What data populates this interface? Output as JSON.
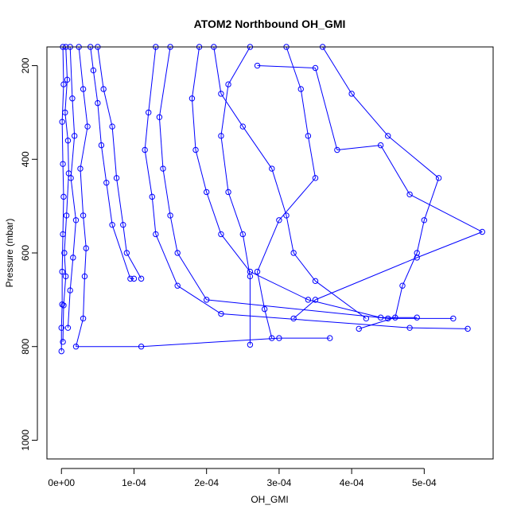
{
  "chart_data": {
    "type": "scatter",
    "title": "ATOM2 Northbound OH_GMI",
    "xlabel": "OH_GMI",
    "ylabel": "Pressure (mbar)",
    "xlim": [
      -2e-05,
      0.000595
    ],
    "ylim": [
      1040,
      160
    ],
    "y_reversed": true,
    "x_ticks": [
      0,
      0.0001,
      0.0002,
      0.0003,
      0.0004,
      0.0005
    ],
    "x_tick_labels": [
      "0e+00",
      "1e-04",
      "2e-04",
      "3e-04",
      "4e-04",
      "5e-04"
    ],
    "y_ticks": [
      200,
      400,
      600,
      800,
      1000
    ],
    "y_tick_labels": [
      "200",
      "400",
      "600",
      "800",
      "1000"
    ],
    "grid": false,
    "legend": "none",
    "colors": {
      "series": "#0000ff",
      "axes": "#000000",
      "background": "#ffffff"
    },
    "series": [
      {
        "values": [
          [
            2e-06,
            160
          ],
          [
            3e-06,
            240
          ],
          [
            1e-06,
            320
          ],
          [
            2e-06,
            410
          ],
          [
            3e-06,
            480
          ],
          [
            2e-06,
            560
          ],
          [
            1e-06,
            640
          ],
          [
            1e-06,
            710
          ],
          [
            0.0,
            760
          ],
          [
            0.0,
            810
          ]
        ]
      },
      {
        "values": [
          [
            6e-06,
            160
          ],
          [
            8e-06,
            230
          ],
          [
            5e-06,
            300
          ],
          [
            9e-06,
            360
          ],
          [
            1e-05,
            430
          ],
          [
            7e-06,
            520
          ],
          [
            4e-06,
            600
          ],
          [
            6e-06,
            650
          ],
          [
            3e-06,
            712
          ],
          [
            2e-06,
            790
          ]
        ]
      },
      {
        "values": [
          [
            1.2e-05,
            160
          ],
          [
            1.5e-05,
            270
          ],
          [
            1.8e-05,
            350
          ],
          [
            1.3e-05,
            440
          ],
          [
            2e-05,
            530
          ],
          [
            1.6e-05,
            610
          ],
          [
            1.2e-05,
            680
          ],
          [
            9e-06,
            760
          ]
        ]
      },
      {
        "values": [
          [
            2.4e-05,
            160
          ],
          [
            3e-05,
            250
          ],
          [
            3.6e-05,
            330
          ],
          [
            2.6e-05,
            420
          ],
          [
            3e-05,
            520
          ],
          [
            3.4e-05,
            590
          ],
          [
            3.2e-05,
            650
          ],
          [
            3e-05,
            740
          ],
          [
            2e-05,
            800
          ],
          [
            0.00011,
            800
          ],
          [
            0.0003,
            782
          ],
          [
            0.00037,
            782
          ]
        ]
      },
      {
        "values": [
          [
            4e-05,
            160
          ],
          [
            4.4e-05,
            210
          ],
          [
            5e-05,
            280
          ],
          [
            5.5e-05,
            370
          ],
          [
            6.2e-05,
            450
          ],
          [
            7e-05,
            540
          ],
          [
            9.5e-05,
            655
          ],
          [
            0.0001,
            655
          ]
        ]
      },
      {
        "values": [
          [
            5e-05,
            160
          ],
          [
            5.8e-05,
            250
          ],
          [
            7e-05,
            330
          ],
          [
            7.6e-05,
            440
          ],
          [
            8.5e-05,
            540
          ],
          [
            9e-05,
            600
          ],
          [
            0.00011,
            655
          ]
        ]
      },
      {
        "values": [
          [
            0.00013,
            160
          ],
          [
            0.00012,
            300
          ],
          [
            0.000115,
            380
          ],
          [
            0.000125,
            480
          ],
          [
            0.00013,
            560
          ],
          [
            0.00016,
            670
          ],
          [
            0.00022,
            730
          ],
          [
            0.00048,
            760
          ],
          [
            0.00056,
            762
          ]
        ]
      },
      {
        "values": [
          [
            0.00015,
            160
          ],
          [
            0.000135,
            310
          ],
          [
            0.00014,
            420
          ],
          [
            0.00015,
            520
          ],
          [
            0.00016,
            600
          ],
          [
            0.0002,
            700
          ],
          [
            0.00045,
            740
          ],
          [
            0.00054,
            740
          ]
        ]
      },
      {
        "values": [
          [
            0.00019,
            160
          ],
          [
            0.00018,
            270
          ],
          [
            0.000185,
            380
          ],
          [
            0.0002,
            470
          ],
          [
            0.00022,
            560
          ],
          [
            0.00026,
            640
          ],
          [
            0.00034,
            700
          ],
          [
            0.00044,
            738
          ],
          [
            0.00049,
            738
          ]
        ]
      },
      {
        "values": [
          [
            0.00021,
            160
          ],
          [
            0.00022,
            260
          ],
          [
            0.00025,
            330
          ],
          [
            0.00029,
            420
          ],
          [
            0.00031,
            520
          ],
          [
            0.00032,
            600
          ],
          [
            0.00035,
            660
          ],
          [
            0.00042,
            740
          ]
        ]
      },
      {
        "values": [
          [
            0.00026,
            160
          ],
          [
            0.00023,
            240
          ],
          [
            0.00022,
            350
          ],
          [
            0.00023,
            470
          ],
          [
            0.00025,
            560
          ],
          [
            0.00026,
            650
          ],
          [
            0.00026,
            796
          ]
        ]
      },
      {
        "values": [
          [
            0.00031,
            160
          ],
          [
            0.00033,
            250
          ],
          [
            0.00034,
            350
          ],
          [
            0.00035,
            440
          ],
          [
            0.0003,
            530
          ],
          [
            0.00027,
            640
          ],
          [
            0.00028,
            720
          ],
          [
            0.00029,
            782
          ]
        ]
      },
      {
        "values": [
          [
            0.00036,
            160
          ],
          [
            0.0004,
            260
          ],
          [
            0.00045,
            350
          ],
          [
            0.00052,
            440
          ],
          [
            0.0005,
            530
          ],
          [
            0.00049,
            600
          ],
          [
            0.00047,
            670
          ],
          [
            0.00046,
            738
          ],
          [
            0.00041,
            762
          ]
        ]
      },
      {
        "values": [
          [
            0.00027,
            200
          ],
          [
            0.00035,
            205
          ],
          [
            0.00038,
            380
          ],
          [
            0.00044,
            370
          ],
          [
            0.00048,
            475
          ],
          [
            0.00058,
            555
          ],
          [
            0.00049,
            610
          ],
          [
            0.00035,
            700
          ],
          [
            0.00032,
            740
          ]
        ]
      }
    ]
  }
}
